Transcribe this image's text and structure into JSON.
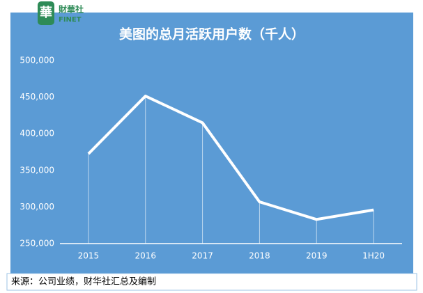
{
  "logo": {
    "name": "財華社",
    "sub": "FINET"
  },
  "chart_data": {
    "type": "line",
    "title": "美图的总月活跃用户数（千人）",
    "categories": [
      "2015",
      "2016",
      "2017",
      "2018",
      "2019",
      "1H20"
    ],
    "values": [
      372600,
      451500,
      415000,
      307000,
      283000,
      296000
    ],
    "color": "#ffffff",
    "ylim": [
      250000,
      500000
    ],
    "yticks": [
      {
        "value": 250000,
        "label": "250,000"
      },
      {
        "value": 300000,
        "label": "300,000"
      },
      {
        "value": 350000,
        "label": "350,000"
      },
      {
        "value": 400000,
        "label": "400,000"
      },
      {
        "value": 450000,
        "label": "450,000"
      },
      {
        "value": 500000,
        "label": "500,000"
      }
    ],
    "drop_lines": true,
    "source": "来源：公司业绩，财华社汇总及编制"
  }
}
